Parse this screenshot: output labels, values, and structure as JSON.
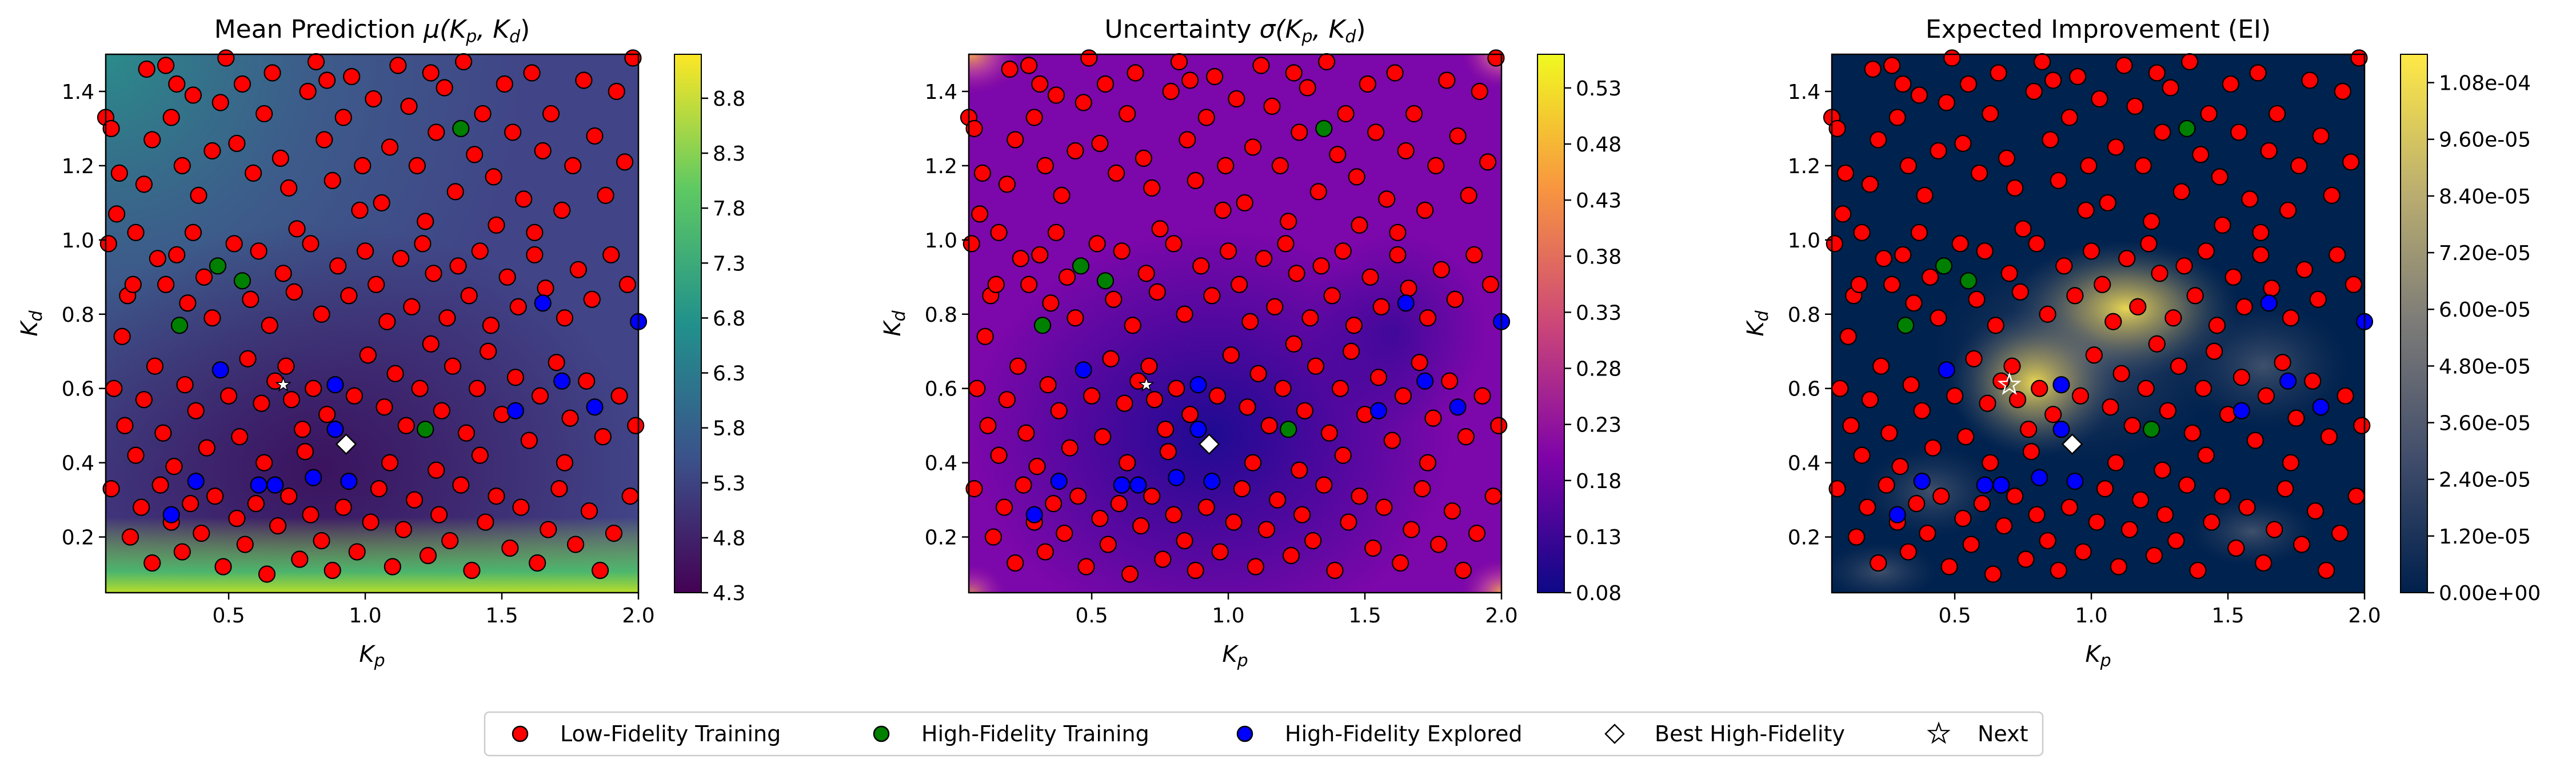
{
  "figure": {
    "panels": [
      {
        "title": "Mean Prediction μ(K_p, K_d)",
        "title_main": "Mean Prediction ",
        "title_sym": "μ",
        "title_args": "(K",
        "colormap": "viridis",
        "colorbar_ticks": [
          "4.3",
          "4.8",
          "5.3",
          "5.8",
          "6.3",
          "6.8",
          "7.3",
          "7.8",
          "8.3",
          "8.8"
        ]
      },
      {
        "title": "Uncertainty σ(K_p, K_d)",
        "title_main": "Uncertainty ",
        "title_sym": "σ",
        "title_args": "(K",
        "colormap": "plasma",
        "colorbar_ticks": [
          "0.08",
          "0.13",
          "0.18",
          "0.23",
          "0.28",
          "0.33",
          "0.38",
          "0.43",
          "0.48",
          "0.53"
        ]
      },
      {
        "title": "Expected Improvement (EI)",
        "title_main": "Expected Improvement (EI)",
        "title_sym": "",
        "title_args": "",
        "colormap": "cividis",
        "colorbar_ticks": [
          "0.00e+00",
          "1.20e-05",
          "2.40e-05",
          "3.60e-05",
          "4.80e-05",
          "6.00e-05",
          "7.20e-05",
          "8.40e-05",
          "9.60e-05",
          "1.08e-04"
        ]
      }
    ],
    "x_label": "K_p",
    "y_label": "K_d",
    "x_ticks": [
      "0.5",
      "1.0",
      "1.5",
      "2.0"
    ],
    "y_ticks": [
      "0.2",
      "0.4",
      "0.6",
      "0.8",
      "1.0",
      "1.2",
      "1.4"
    ],
    "legend": {
      "low_fidelity": "Low-Fidelity Training",
      "high_fidelity_training": "High-Fidelity Training",
      "high_fidelity_explored": "High-Fidelity Explored",
      "best": "Best High-Fidelity",
      "next": "Next"
    }
  },
  "chart_data": [
    {
      "type": "heatmap",
      "title": "Mean Prediction μ(K_p, K_d)",
      "xlabel": "K_p",
      "ylabel": "K_d",
      "xlim": [
        0.05,
        2.0
      ],
      "ylim": [
        0.05,
        1.5
      ],
      "x_ticks": [
        0.5,
        1.0,
        1.5,
        2.0
      ],
      "y_ticks": [
        0.2,
        0.4,
        0.6,
        0.8,
        1.0,
        1.2,
        1.4
      ],
      "colorbar_range": [
        4.3,
        9.2
      ],
      "colorbar_ticks": [
        4.3,
        4.8,
        5.3,
        5.8,
        6.3,
        6.8,
        7.3,
        7.8,
        8.3,
        8.8
      ]
    },
    {
      "type": "heatmap",
      "title": "Uncertainty σ(K_p, K_d)",
      "xlabel": "K_p",
      "ylabel": "K_d",
      "xlim": [
        0.05,
        2.0
      ],
      "ylim": [
        0.05,
        1.5
      ],
      "x_ticks": [
        0.5,
        1.0,
        1.5,
        2.0
      ],
      "y_ticks": [
        0.2,
        0.4,
        0.6,
        0.8,
        1.0,
        1.2,
        1.4
      ],
      "colorbar_range": [
        0.08,
        0.56
      ],
      "colorbar_ticks": [
        0.08,
        0.13,
        0.18,
        0.23,
        0.28,
        0.33,
        0.38,
        0.43,
        0.48,
        0.53
      ]
    },
    {
      "type": "heatmap",
      "title": "Expected Improvement (EI)",
      "xlabel": "K_p",
      "ylabel": "K_d",
      "xlim": [
        0.05,
        2.0
      ],
      "ylim": [
        0.05,
        1.5
      ],
      "x_ticks": [
        0.5,
        1.0,
        1.5,
        2.0
      ],
      "y_ticks": [
        0.2,
        0.4,
        0.6,
        0.8,
        1.0,
        1.2,
        1.4
      ],
      "colorbar_range": [
        0.0,
        0.000114
      ],
      "colorbar_ticks": [
        0.0,
        1.2e-05,
        2.4e-05,
        3.6e-05,
        4.8e-05,
        6e-05,
        7.2e-05,
        8.4e-05,
        9.6e-05,
        0.000108
      ]
    }
  ],
  "points": {
    "low_fidelity": [
      [
        0.05,
        1.33
      ],
      [
        0.07,
        1.3
      ],
      [
        0.1,
        1.18
      ],
      [
        0.09,
        1.07
      ],
      [
        0.06,
        0.99
      ],
      [
        0.13,
        0.85
      ],
      [
        0.11,
        0.74
      ],
      [
        0.15,
        0.88
      ],
      [
        0.19,
        1.15
      ],
      [
        0.22,
        1.27
      ],
      [
        0.2,
        1.46
      ],
      [
        0.27,
        1.47
      ],
      [
        0.31,
        1.42
      ],
      [
        0.29,
        1.33
      ],
      [
        0.33,
        1.2
      ],
      [
        0.39,
        1.12
      ],
      [
        0.37,
        1.39
      ],
      [
        0.44,
        1.24
      ],
      [
        0.49,
        1.49
      ],
      [
        0.47,
        1.37
      ],
      [
        0.53,
        1.26
      ],
      [
        0.55,
        1.42
      ],
      [
        0.59,
        1.18
      ],
      [
        0.63,
        1.34
      ],
      [
        0.66,
        1.45
      ],
      [
        0.69,
        1.22
      ],
      [
        0.72,
        1.14
      ],
      [
        0.75,
        1.03
      ],
      [
        0.79,
        1.4
      ],
      [
        0.82,
        1.48
      ],
      [
        0.85,
        1.27
      ],
      [
        0.88,
        1.16
      ],
      [
        0.92,
        1.33
      ],
      [
        0.95,
        1.44
      ],
      [
        0.99,
        1.2
      ],
      [
        1.03,
        1.38
      ],
      [
        1.06,
        1.1
      ],
      [
        1.09,
        1.25
      ],
      [
        1.12,
        1.47
      ],
      [
        1.16,
        1.36
      ],
      [
        1.19,
        1.2
      ],
      [
        1.22,
        1.05
      ],
      [
        1.26,
        1.29
      ],
      [
        1.29,
        1.41
      ],
      [
        1.33,
        1.13
      ],
      [
        1.36,
        1.48
      ],
      [
        1.4,
        1.23
      ],
      [
        1.43,
        1.34
      ],
      [
        1.47,
        1.17
      ],
      [
        1.51,
        1.42
      ],
      [
        1.54,
        1.29
      ],
      [
        1.58,
        1.11
      ],
      [
        1.61,
        1.45
      ],
      [
        1.65,
        1.24
      ],
      [
        1.68,
        1.34
      ],
      [
        1.72,
        1.08
      ],
      [
        1.76,
        1.2
      ],
      [
        1.8,
        1.43
      ],
      [
        1.84,
        1.28
      ],
      [
        1.88,
        1.12
      ],
      [
        1.92,
        1.4
      ],
      [
        1.95,
        1.21
      ],
      [
        1.98,
        1.49
      ],
      [
        0.24,
        0.95
      ],
      [
        0.27,
        0.88
      ],
      [
        0.31,
        0.96
      ],
      [
        0.35,
        0.83
      ],
      [
        0.41,
        0.9
      ],
      [
        0.44,
        0.79
      ],
      [
        0.52,
        0.99
      ],
      [
        0.58,
        0.84
      ],
      [
        0.61,
        0.97
      ],
      [
        0.65,
        0.77
      ],
      [
        0.7,
        0.91
      ],
      [
        0.74,
        0.86
      ],
      [
        0.8,
        0.99
      ],
      [
        0.84,
        0.8
      ],
      [
        0.9,
        0.93
      ],
      [
        0.94,
        0.85
      ],
      [
        1.0,
        0.97
      ],
      [
        1.04,
        0.88
      ],
      [
        1.08,
        0.78
      ],
      [
        1.13,
        0.95
      ],
      [
        1.17,
        0.82
      ],
      [
        1.21,
        0.99
      ],
      [
        1.25,
        0.91
      ],
      [
        1.3,
        0.79
      ],
      [
        1.34,
        0.93
      ],
      [
        1.38,
        0.85
      ],
      [
        1.42,
        0.97
      ],
      [
        1.46,
        0.77
      ],
      [
        1.52,
        0.9
      ],
      [
        1.56,
        0.82
      ],
      [
        1.62,
        0.96
      ],
      [
        1.66,
        0.87
      ],
      [
        1.73,
        0.79
      ],
      [
        1.78,
        0.92
      ],
      [
        1.83,
        0.84
      ],
      [
        1.9,
        0.96
      ],
      [
        1.96,
        0.88
      ],
      [
        0.08,
        0.6
      ],
      [
        0.12,
        0.5
      ],
      [
        0.16,
        0.42
      ],
      [
        0.19,
        0.57
      ],
      [
        0.23,
        0.66
      ],
      [
        0.26,
        0.48
      ],
      [
        0.3,
        0.39
      ],
      [
        0.34,
        0.61
      ],
      [
        0.38,
        0.54
      ],
      [
        0.42,
        0.44
      ],
      [
        0.5,
        0.58
      ],
      [
        0.54,
        0.47
      ],
      [
        0.57,
        0.68
      ],
      [
        0.62,
        0.56
      ],
      [
        0.67,
        0.62
      ],
      [
        0.71,
        0.66
      ],
      [
        0.73,
        0.57
      ],
      [
        0.77,
        0.49
      ],
      [
        0.81,
        0.6
      ],
      [
        0.86,
        0.53
      ],
      [
        0.96,
        0.58
      ],
      [
        1.01,
        0.69
      ],
      [
        1.07,
        0.55
      ],
      [
        1.11,
        0.64
      ],
      [
        1.15,
        0.5
      ],
      [
        1.2,
        0.6
      ],
      [
        1.24,
        0.72
      ],
      [
        1.28,
        0.54
      ],
      [
        1.32,
        0.66
      ],
      [
        1.37,
        0.48
      ],
      [
        1.41,
        0.6
      ],
      [
        1.45,
        0.7
      ],
      [
        1.5,
        0.53
      ],
      [
        1.55,
        0.63
      ],
      [
        1.6,
        0.46
      ],
      [
        1.64,
        0.58
      ],
      [
        1.7,
        0.67
      ],
      [
        1.75,
        0.52
      ],
      [
        1.81,
        0.62
      ],
      [
        1.87,
        0.47
      ],
      [
        1.93,
        0.58
      ],
      [
        1.99,
        0.5
      ],
      [
        0.07,
        0.33
      ],
      [
        0.14,
        0.2
      ],
      [
        0.18,
        0.28
      ],
      [
        0.22,
        0.13
      ],
      [
        0.25,
        0.34
      ],
      [
        0.29,
        0.24
      ],
      [
        0.33,
        0.16
      ],
      [
        0.36,
        0.29
      ],
      [
        0.4,
        0.21
      ],
      [
        0.45,
        0.31
      ],
      [
        0.48,
        0.12
      ],
      [
        0.53,
        0.25
      ],
      [
        0.56,
        0.18
      ],
      [
        0.6,
        0.29
      ],
      [
        0.64,
        0.1
      ],
      [
        0.68,
        0.23
      ],
      [
        0.72,
        0.31
      ],
      [
        0.76,
        0.14
      ],
      [
        0.8,
        0.26
      ],
      [
        0.84,
        0.19
      ],
      [
        0.88,
        0.11
      ],
      [
        0.92,
        0.28
      ],
      [
        0.97,
        0.16
      ],
      [
        1.02,
        0.24
      ],
      [
        1.05,
        0.33
      ],
      [
        1.1,
        0.12
      ],
      [
        1.14,
        0.22
      ],
      [
        1.18,
        0.3
      ],
      [
        1.23,
        0.15
      ],
      [
        1.27,
        0.26
      ],
      [
        1.31,
        0.19
      ],
      [
        1.35,
        0.34
      ],
      [
        1.39,
        0.11
      ],
      [
        1.44,
        0.24
      ],
      [
        1.48,
        0.31
      ],
      [
        1.53,
        0.17
      ],
      [
        1.57,
        0.28
      ],
      [
        1.63,
        0.13
      ],
      [
        1.67,
        0.22
      ],
      [
        1.71,
        0.33
      ],
      [
        1.77,
        0.18
      ],
      [
        1.82,
        0.27
      ],
      [
        1.86,
        0.11
      ],
      [
        1.91,
        0.21
      ],
      [
        1.97,
        0.31
      ],
      [
        0.63,
        0.4
      ],
      [
        0.78,
        0.43
      ],
      [
        1.09,
        0.4
      ],
      [
        1.26,
        0.38
      ],
      [
        1.42,
        0.42
      ],
      [
        1.73,
        0.4
      ],
      [
        0.98,
        1.08
      ],
      [
        1.48,
        1.04
      ],
      [
        0.37,
        1.02
      ],
      [
        0.16,
        1.02
      ],
      [
        1.24,
        1.45
      ],
      [
        0.86,
        1.43
      ],
      [
        1.62,
        1.02
      ]
    ],
    "high_fidelity_training": [
      [
        0.46,
        0.93
      ],
      [
        0.55,
        0.89
      ],
      [
        0.32,
        0.77
      ],
      [
        1.22,
        0.49
      ],
      [
        1.35,
        1.3
      ]
    ],
    "high_fidelity_explored": [
      [
        0.47,
        0.65
      ],
      [
        0.38,
        0.35
      ],
      [
        0.29,
        0.26
      ],
      [
        0.61,
        0.34
      ],
      [
        0.67,
        0.34
      ],
      [
        0.89,
        0.61
      ],
      [
        0.89,
        0.49
      ],
      [
        0.94,
        0.35
      ],
      [
        1.55,
        0.54
      ],
      [
        1.72,
        0.62
      ],
      [
        1.84,
        0.55
      ],
      [
        1.65,
        0.83
      ],
      [
        2.0,
        0.78
      ],
      [
        0.81,
        0.36
      ]
    ],
    "best": [
      [
        0.93,
        0.45
      ]
    ],
    "next": [
      [
        0.7,
        0.61
      ]
    ]
  }
}
